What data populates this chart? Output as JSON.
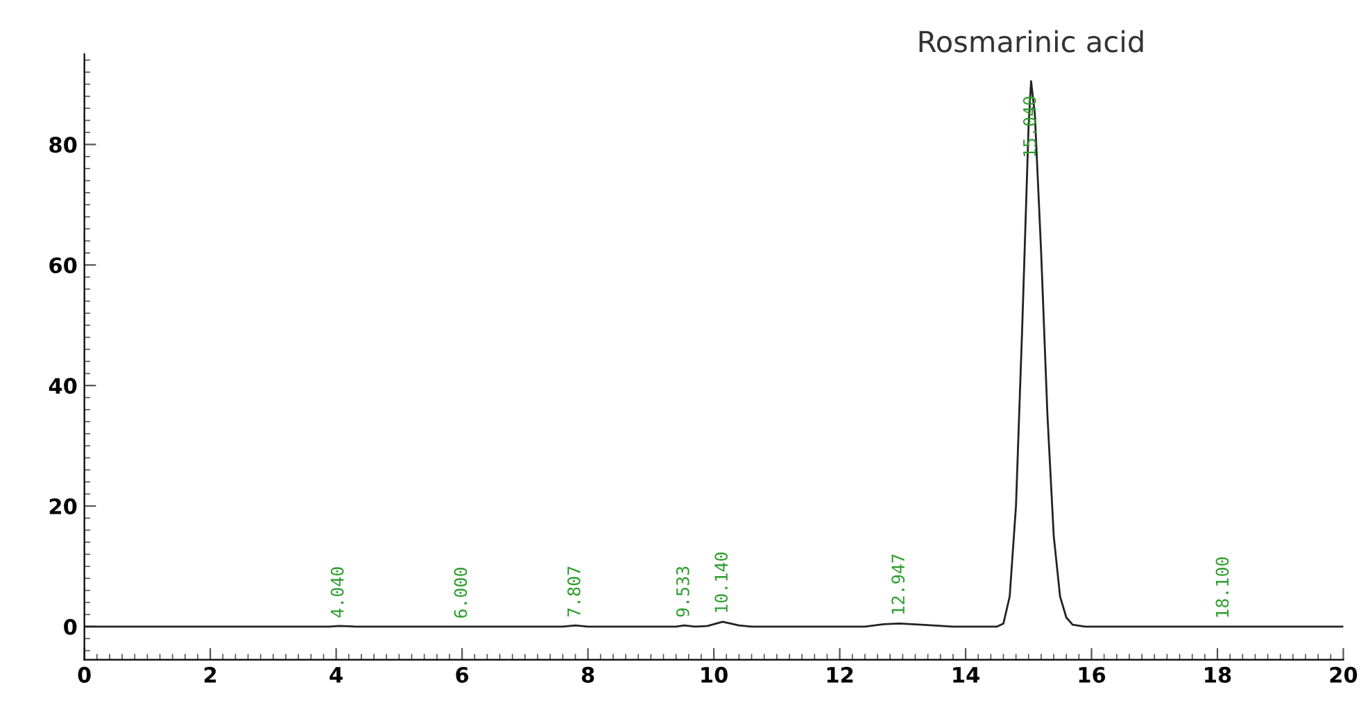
{
  "chart_data": {
    "type": "line",
    "xlim": [
      0,
      20
    ],
    "ylim": [
      -5.5,
      95
    ],
    "xticks": [
      0,
      2,
      4,
      6,
      8,
      10,
      12,
      14,
      16,
      18,
      20
    ],
    "yticks": [
      0,
      20,
      40,
      60,
      80
    ],
    "grid": false,
    "legend": false,
    "marker": "none",
    "line_style": "solid",
    "series": [
      {
        "color": "#222222",
        "x": [
          0,
          3.9,
          4.04,
          4.3,
          5.9,
          6.0,
          6.2,
          7.6,
          7.8,
          8.0,
          9.4,
          9.53,
          9.7,
          9.9,
          10.14,
          10.4,
          10.6,
          12.4,
          12.7,
          12.95,
          13.3,
          13.8,
          14.5,
          14.6,
          14.7,
          14.8,
          14.9,
          15.0,
          15.04,
          15.1,
          15.2,
          15.3,
          15.4,
          15.5,
          15.6,
          15.7,
          15.9,
          17.5,
          18.1,
          20
        ],
        "values": [
          0,
          0,
          0.1,
          0,
          0,
          0,
          0,
          0,
          0.2,
          0,
          0,
          0.2,
          0,
          0.1,
          0.8,
          0.2,
          0,
          0,
          0.4,
          0.5,
          0.3,
          0,
          0,
          0.5,
          5,
          20,
          50,
          83,
          90.5,
          85,
          62,
          35,
          15,
          5,
          1.5,
          0.3,
          0,
          0,
          0,
          0
        ]
      }
    ],
    "annotations": [
      {
        "text": "Rosmarinic acid",
        "x": 15.04,
        "y": 90.5
      },
      {
        "text": "4.040",
        "x": 4.04,
        "y": 0.1
      },
      {
        "text": "6.000",
        "x": 6.0,
        "y": 0
      },
      {
        "text": "7.807",
        "x": 7.8,
        "y": 0.2
      },
      {
        "text": "9.533",
        "x": 9.53,
        "y": 0.2
      },
      {
        "text": "10.140",
        "x": 10.14,
        "y": 0.8
      },
      {
        "text": "12.947",
        "x": 12.95,
        "y": 0.5
      },
      {
        "text": "15.040",
        "x": 15.04,
        "y": 90.5
      },
      {
        "text": "18.100",
        "x": 18.1,
        "y": 0
      }
    ]
  }
}
